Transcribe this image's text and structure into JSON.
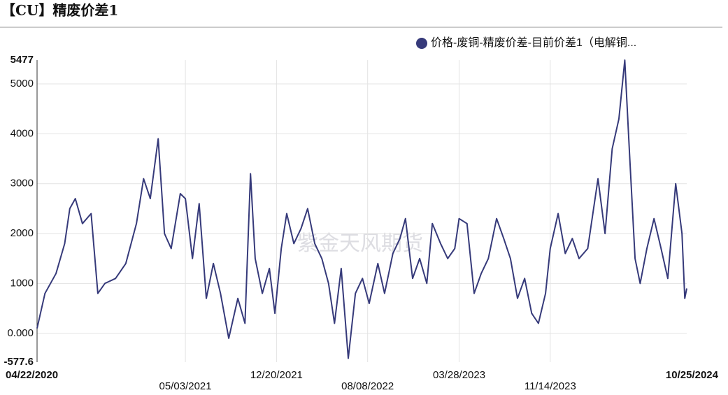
{
  "header": {
    "title": "【CU】精废价差1"
  },
  "watermark": "紫金天风期货",
  "chart_data": {
    "type": "line",
    "legend": "top-right",
    "grid": true,
    "xlim": [
      "04/22/2020",
      "10/25/2024"
    ],
    "xticks": [
      "04/22/2020",
      "05/03/2021",
      "12/20/2021",
      "08/08/2022",
      "03/28/2023",
      "11/14/2023",
      "10/25/2024"
    ],
    "ylim": [
      -577.6,
      5477
    ],
    "yticks": [
      -577.6,
      {
        "value": 0,
        "label": "0.000"
      },
      1000,
      2000,
      3000,
      4000,
      5000,
      5477
    ],
    "series": [
      {
        "name": "价格-废铜-精废价差-目前价差1（电解铜...",
        "color": "#363a7a",
        "x": [
          "04/22/2020",
          "05/12/2020",
          "06/09/2020",
          "07/01/2020",
          "07/14/2020",
          "07/28/2020",
          "08/15/2020",
          "09/06/2020",
          "09/23/2020",
          "10/11/2020",
          "11/07/2020",
          "12/03/2020",
          "12/30/2020",
          "01/17/2021",
          "02/03/2021",
          "02/23/2021",
          "03/11/2021",
          "03/28/2021",
          "04/20/2021",
          "05/03/2021",
          "05/21/2021",
          "06/07/2021",
          "06/25/2021",
          "07/13/2021",
          "07/31/2021",
          "08/21/2021",
          "09/13/2021",
          "10/01/2021",
          "10/15/2021",
          "10/27/2021",
          "11/14/2021",
          "12/02/2021",
          "12/16/2021",
          "01/01/2022",
          "01/15/2022",
          "02/02/2022",
          "02/20/2022",
          "03/09/2022",
          "03/27/2022",
          "04/14/2022",
          "05/01/2022",
          "05/16/2022",
          "06/02/2022",
          "06/20/2022",
          "07/08/2022",
          "07/26/2022",
          "08/12/2022",
          "09/03/2022",
          "09/20/2022",
          "10/11/2022",
          "10/29/2022",
          "11/12/2022",
          "11/30/2022",
          "12/18/2022",
          "01/05/2023",
          "01/19/2023",
          "02/09/2023",
          "02/27/2023",
          "03/17/2023",
          "03/28/2023",
          "04/17/2023",
          "05/05/2023",
          "05/23/2023",
          "06/10/2023",
          "07/01/2023",
          "07/19/2023",
          "08/05/2023",
          "08/23/2023",
          "09/10/2023",
          "09/28/2023",
          "10/15/2023",
          "11/02/2023",
          "11/14/2023",
          "12/04/2023",
          "12/22/2023",
          "01/09/2024",
          "01/26/2024",
          "02/17/2024",
          "03/14/2024",
          "04/01/2024",
          "04/19/2024",
          "05/06/2024",
          "05/21/2024",
          "06/02/2024",
          "06/16/2024",
          "06/29/2024",
          "07/16/2024",
          "08/03/2024",
          "08/21/2024",
          "09/07/2024",
          "09/27/2024",
          "10/13/2024",
          "10/20/2024",
          "10/25/2024"
        ],
        "values": [
          100,
          800,
          1200,
          1800,
          2500,
          2700,
          2200,
          2400,
          800,
          1000,
          1100,
          1400,
          2200,
          3100,
          2700,
          3900,
          2000,
          1700,
          2800,
          2700,
          1500,
          2600,
          700,
          1400,
          800,
          -100,
          700,
          200,
          3200,
          1500,
          800,
          1300,
          400,
          1700,
          2400,
          1800,
          2100,
          2500,
          1800,
          1500,
          1000,
          200,
          1300,
          -500,
          800,
          1100,
          600,
          1400,
          800,
          1600,
          1900,
          2300,
          1100,
          1500,
          1000,
          2200,
          1800,
          1500,
          1700,
          2300,
          2200,
          800,
          1200,
          1500,
          2300,
          1900,
          1500,
          700,
          1100,
          400,
          200,
          800,
          1700,
          2400,
          1600,
          1900,
          1500,
          1700,
          3100,
          2000,
          3700,
          4300,
          5477,
          3600,
          1500,
          1000,
          1700,
          2300,
          1700,
          1100,
          3000,
          2000,
          700,
          900
        ]
      }
    ]
  }
}
